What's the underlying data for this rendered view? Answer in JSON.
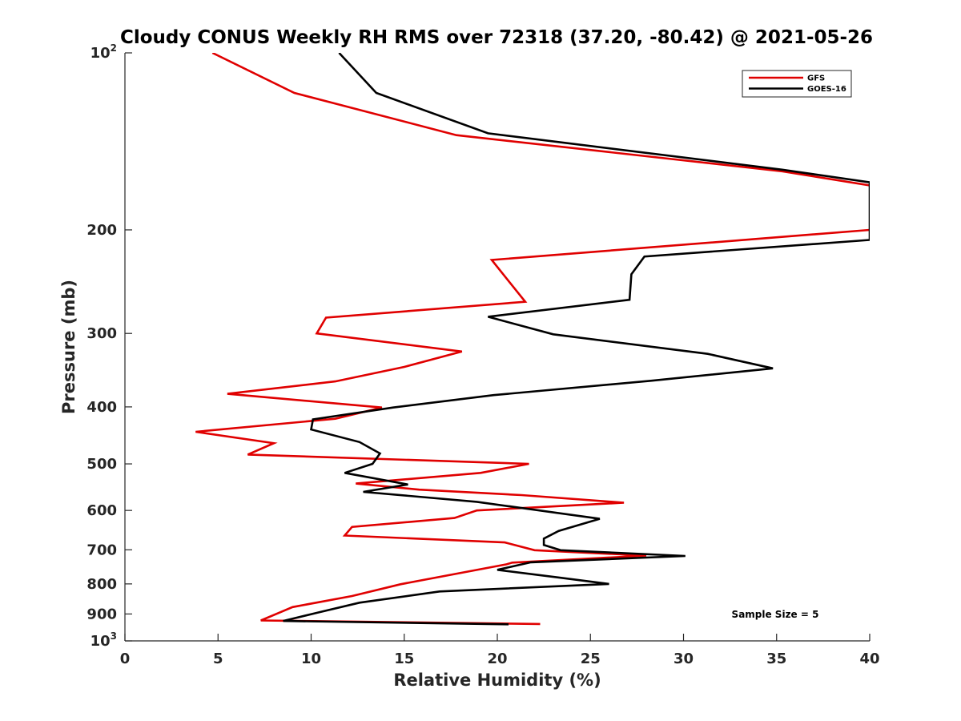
{
  "chart_data": {
    "type": "line",
    "title": "Cloudy CONUS Weekly RH RMS over 72318 (37.20, -80.42) @ 2021-05-26",
    "xlabel": "Relative Humidity (%)",
    "ylabel": "Pressure (mb)",
    "xlim": [
      0,
      40
    ],
    "ylim": [
      100,
      1000
    ],
    "y_scale": "log",
    "y_reversed": true,
    "x_ticks": [
      "0",
      "5",
      "10",
      "15",
      "20",
      "25",
      "30",
      "35",
      "40"
    ],
    "y_ticks": [
      {
        "value": 100,
        "base": "10",
        "exp": "2"
      },
      {
        "value": 200,
        "label": "200"
      },
      {
        "value": 300,
        "label": "300"
      },
      {
        "value": 400,
        "label": "400"
      },
      {
        "value": 500,
        "label": "500"
      },
      {
        "value": 600,
        "label": "600"
      },
      {
        "value": 700,
        "label": "700"
      },
      {
        "value": 800,
        "label": "800"
      },
      {
        "value": 900,
        "label": "900"
      },
      {
        "value": 1000,
        "base": "10",
        "exp": "3"
      }
    ],
    "legend_position": "top-right",
    "annotation": "Sample Size = 5",
    "series": [
      {
        "name": "GFS",
        "color": "#e00000",
        "points": [
          [
            4.7,
            100
          ],
          [
            9.1,
            117
          ],
          [
            17.8,
            138
          ],
          [
            35.3,
            159
          ],
          [
            40.5,
            169
          ],
          [
            40.0,
            200
          ],
          [
            19.7,
            225
          ],
          [
            20.5,
            242
          ],
          [
            21.5,
            265
          ],
          [
            10.8,
            282
          ],
          [
            10.3,
            300
          ],
          [
            18.1,
            322
          ],
          [
            15.0,
            342
          ],
          [
            11.3,
            362
          ],
          [
            5.5,
            380
          ],
          [
            13.8,
            401
          ],
          [
            11.3,
            419
          ],
          [
            3.8,
            441
          ],
          [
            8.0,
            461
          ],
          [
            6.6,
            482
          ],
          [
            21.7,
            500
          ],
          [
            19.1,
            518
          ],
          [
            12.4,
            540
          ],
          [
            15.8,
            553
          ],
          [
            21.3,
            565
          ],
          [
            26.8,
            582
          ],
          [
            18.9,
            600
          ],
          [
            17.7,
            618
          ],
          [
            12.2,
            640
          ],
          [
            11.8,
            662
          ],
          [
            20.4,
            680
          ],
          [
            22.0,
            701
          ],
          [
            28.0,
            716
          ],
          [
            20.8,
            736
          ],
          [
            20.5,
            741
          ],
          [
            14.8,
            801
          ],
          [
            12.2,
            839
          ],
          [
            9.0,
            876
          ],
          [
            7.3,
            923
          ],
          [
            22.3,
            936
          ]
        ]
      },
      {
        "name": "GOES-16",
        "color": "#000000",
        "points": [
          [
            11.5,
            100
          ],
          [
            13.5,
            117
          ],
          [
            19.5,
            137
          ],
          [
            35.3,
            158
          ],
          [
            40.0,
            166
          ],
          [
            40.0,
            208
          ],
          [
            27.9,
            222
          ],
          [
            27.2,
            238
          ],
          [
            27.1,
            263
          ],
          [
            19.5,
            281
          ],
          [
            23.0,
            301
          ],
          [
            31.3,
            325
          ],
          [
            34.8,
            344
          ],
          [
            28.3,
            361
          ],
          [
            19.8,
            382
          ],
          [
            14.4,
            401
          ],
          [
            10.1,
            420
          ],
          [
            10.0,
            437
          ],
          [
            12.6,
            459
          ],
          [
            13.7,
            480
          ],
          [
            13.3,
            500
          ],
          [
            11.8,
            518
          ],
          [
            15.2,
            542
          ],
          [
            12.8,
            558
          ],
          [
            18.9,
            580
          ],
          [
            25.5,
            620
          ],
          [
            23.3,
            650
          ],
          [
            22.5,
            670
          ],
          [
            22.5,
            687
          ],
          [
            23.4,
            701
          ],
          [
            30.1,
            717
          ],
          [
            21.8,
            735
          ],
          [
            20.0,
            757
          ],
          [
            23.4,
            781
          ],
          [
            26.0,
            800
          ],
          [
            16.9,
            824
          ],
          [
            12.6,
            861
          ],
          [
            10.3,
            896
          ],
          [
            8.5,
            925
          ],
          [
            20.6,
            937
          ]
        ]
      }
    ]
  }
}
